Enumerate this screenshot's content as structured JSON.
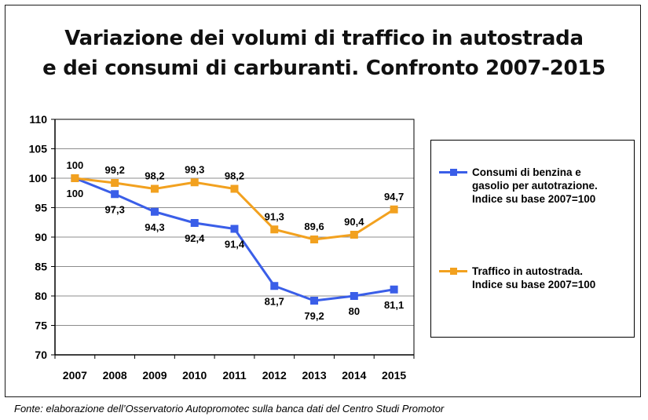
{
  "chart_data": {
    "type": "line",
    "title_lines": [
      "Variazione dei volumi di traffico in autostrada",
      "e dei consumi di carburanti. Confronto 2007-2015"
    ],
    "categories": [
      "2007",
      "2008",
      "2009",
      "2010",
      "2011",
      "2012",
      "2013",
      "2014",
      "2015"
    ],
    "ylim": [
      70,
      110
    ],
    "yticks": [
      70,
      75,
      80,
      85,
      90,
      95,
      100,
      105,
      110
    ],
    "grid": true,
    "legend_position": "right",
    "series": [
      {
        "name": "Consumi di benzina e\ngasolio per autotrazione.\nIndice su base 2007=100",
        "color": "#3a5ee8",
        "values": [
          100,
          97.3,
          94.3,
          92.4,
          91.4,
          81.7,
          79.2,
          80,
          81.1
        ],
        "labels": [
          "100",
          "97,3",
          "94,3",
          "92,4",
          "91,4",
          "81,7",
          "79,2",
          "80",
          "81,1"
        ]
      },
      {
        "name": "Traffico in autostrada.\nIndice su base 2007=100",
        "color": "#f2a11f",
        "values": [
          100,
          99.2,
          98.2,
          99.3,
          98.2,
          91.3,
          89.6,
          90.4,
          94.7
        ],
        "labels": [
          "100",
          "99,2",
          "98,2",
          "99,3",
          "98,2",
          "91,3",
          "89,6",
          "90,4",
          "94,7"
        ]
      }
    ]
  },
  "source": "Fonte: elaborazione dell’Osservatorio Autopromotec sulla banca dati del Centro Studi Promotor"
}
